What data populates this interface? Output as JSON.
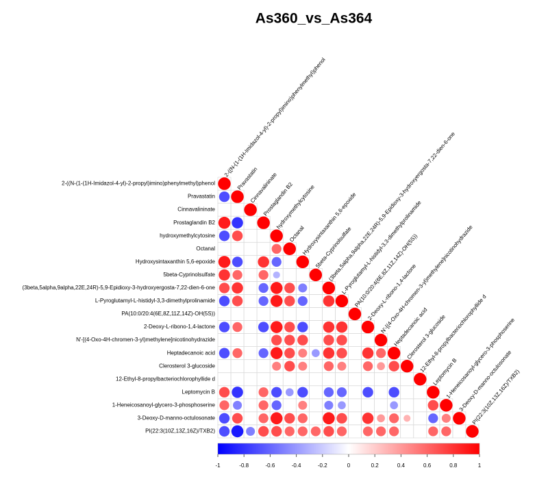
{
  "chart_data": {
    "type": "corrplot",
    "title": "As360_vs_As364",
    "categories": [
      "2-((N-(1-(1H-Imidazol-4-yl)-2-propyl)imino)phenylmethyl)phenol",
      "Pravastatin",
      "Cinnavalininate",
      "Prostaglandin B2",
      "hydroxymethylcytosine",
      "Octanal",
      "Hydroxysintaxanthin 5,6-epoxide",
      "5beta-Cyprinolsulfate",
      "(3beta,5alpha,9alpha,22E,24R)-5,9-Epidioxy-3-hydroxyergosta-7,22-dien-6-one",
      "L-Pyroglutamyl-L-histidyl-3,3-dimethylprolinamide",
      "PA(10:0/20:4(6E,8Z,11Z,14Z)-OH(5S))",
      "2-Deoxy-L-ribono-1,4-lactone",
      "N'-[(4-Oxo-4H-chromen-3-yl)methylene]nicotinohydrazide",
      "Heptadecanoic acid",
      "Clerosterol 3-glucoside",
      "12-Ethyl-8-propylbacteriochlorophyllide d",
      "Leptomycin B",
      "1-Heneicosanoyl-glycero-3-phosphoserine",
      "3-Deoxy-D-manno-octulosonate",
      "PI(22:3(10Z,13Z,16Z)/TXB2)"
    ],
    "matrix": [
      [
        1
      ],
      [
        -0.7,
        1
      ],
      [
        null,
        null,
        1
      ],
      [
        0.9,
        -0.8,
        null,
        1
      ],
      [
        -0.7,
        0.7,
        null,
        null,
        1
      ],
      [
        null,
        null,
        null,
        null,
        0.6,
        1
      ],
      [
        0.9,
        -0.7,
        null,
        0.8,
        -0.6,
        null,
        1
      ],
      [
        0.8,
        0.6,
        null,
        0.6,
        -0.3,
        null,
        null,
        1
      ],
      [
        0.7,
        0.8,
        null,
        -0.6,
        0.9,
        0.7,
        -0.5,
        null,
        1
      ],
      [
        -0.7,
        0.7,
        null,
        -0.6,
        0.9,
        0.7,
        -0.6,
        null,
        0.8,
        1
      ],
      [
        null,
        null,
        null,
        null,
        null,
        null,
        null,
        null,
        null,
        null,
        1
      ],
      [
        -0.7,
        0.6,
        null,
        -0.7,
        0.9,
        0.7,
        -0.7,
        null,
        0.8,
        0.8,
        null,
        1
      ],
      [
        null,
        null,
        null,
        null,
        0.7,
        0.7,
        0.7,
        null,
        0.7,
        0.7,
        null,
        null,
        1
      ],
      [
        -0.7,
        0.6,
        null,
        -0.6,
        0.9,
        0.7,
        0.5,
        -0.4,
        0.8,
        0.7,
        null,
        0.8,
        0.6,
        1
      ],
      [
        null,
        null,
        null,
        null,
        0.5,
        0.7,
        0.5,
        null,
        0.6,
        0.5,
        null,
        0.6,
        0.4,
        0.7,
        1
      ],
      [
        null,
        null,
        null,
        null,
        null,
        null,
        null,
        null,
        null,
        null,
        null,
        null,
        null,
        null,
        null,
        1
      ],
      [
        0.7,
        -0.8,
        null,
        0.6,
        -0.7,
        -0.4,
        -0.7,
        null,
        -0.6,
        -0.6,
        null,
        -0.7,
        null,
        -0.7,
        null,
        null,
        1
      ],
      [
        0.6,
        -0.5,
        null,
        0.6,
        -0.6,
        null,
        0.5,
        null,
        -0.5,
        -0.4,
        null,
        null,
        null,
        -0.4,
        null,
        null,
        0.7,
        1
      ],
      [
        -0.7,
        0.7,
        null,
        0.6,
        0.9,
        0.7,
        0.6,
        null,
        0.9,
        0.7,
        null,
        0.8,
        0.4,
        0.6,
        0.3,
        null,
        -0.6,
        0.5,
        1
      ],
      [
        -0.7,
        -0.9,
        -0.5,
        0.7,
        0.7,
        0.6,
        0.6,
        0.6,
        0.7,
        0.6,
        null,
        0.6,
        0.6,
        0.6,
        null,
        null,
        0.6,
        0.6,
        null,
        1
      ]
    ],
    "colors": [
      "#0000ff",
      "#ffffff",
      "#ff0000"
    ],
    "clim": [
      -1,
      1
    ],
    "cticks": [
      -1,
      -0.8,
      -0.6,
      -0.4,
      -0.2,
      0,
      0.2,
      0.4,
      0.6,
      0.8,
      1
    ]
  }
}
